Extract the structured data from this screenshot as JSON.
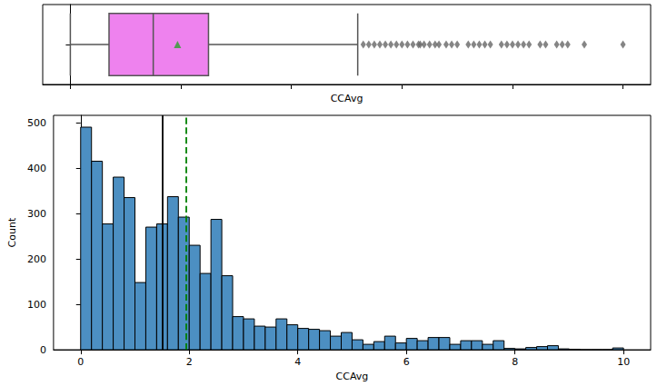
{
  "chart_data": [
    {
      "type": "boxplot",
      "xlabel": "CCAvg",
      "stats": {
        "min": 0,
        "q1": 0.7,
        "median": 1.5,
        "q3": 2.5,
        "max": 5.2,
        "mean": 1.94
      },
      "outliers": [
        5.3,
        5.4,
        5.5,
        5.6,
        5.7,
        5.8,
        5.9,
        6.0,
        6.1,
        6.2,
        6.3,
        6.33,
        6.4,
        6.5,
        6.6,
        6.67,
        6.8,
        6.9,
        7.0,
        7.2,
        7.3,
        7.4,
        7.5,
        7.6,
        7.8,
        7.9,
        8.0,
        8.1,
        8.2,
        8.3,
        8.5,
        8.6,
        8.8,
        8.9,
        9.0,
        9.3,
        10.0
      ],
      "color": "violet",
      "xlim": [
        -0.5,
        10.5
      ],
      "xticks": [
        0,
        2,
        4,
        6,
        8,
        10
      ],
      "tick_labels": false
    },
    {
      "type": "histogram",
      "xlabel": "CCAvg",
      "ylabel": "Count",
      "bins": [
        0,
        0.2,
        0.4,
        0.6,
        0.8,
        1.0,
        1.2,
        1.4,
        1.6,
        1.8,
        2.0,
        2.2,
        2.4,
        2.6,
        2.8,
        3.0,
        3.2,
        3.4,
        3.6,
        3.8,
        4.0,
        4.2,
        4.4,
        4.6,
        4.8,
        5.0,
        5.2,
        5.4,
        5.6,
        5.8,
        6.0,
        6.2,
        6.4,
        6.6,
        6.8,
        7.0,
        7.2,
        7.4,
        7.6,
        7.8,
        8.0,
        8.2,
        8.4,
        8.6,
        8.8,
        9.0,
        9.2,
        9.4,
        9.6,
        9.8,
        10.0
      ],
      "values": [
        490,
        415,
        277,
        380,
        335,
        148,
        270,
        277,
        337,
        292,
        230,
        168,
        287,
        163,
        73,
        68,
        52,
        50,
        68,
        55,
        47,
        45,
        42,
        30,
        38,
        22,
        12,
        18,
        30,
        15,
        25,
        20,
        27,
        27,
        12,
        20,
        20,
        12,
        20,
        3,
        2,
        5,
        7,
        9,
        2,
        1,
        0,
        0,
        0,
        4
      ],
      "color": "#4c8fc2",
      "vlines": [
        {
          "x": 1.5,
          "color": "black",
          "line_style": "solid"
        },
        {
          "x": 1.94,
          "color": "green",
          "line_style": "dashed"
        }
      ],
      "xlim": [
        -0.5,
        10.5
      ],
      "xticks": [
        0,
        2,
        4,
        6,
        8,
        10
      ],
      "ylim": [
        0,
        516
      ],
      "yticks": [
        0,
        100,
        200,
        300,
        400,
        500
      ]
    }
  ]
}
